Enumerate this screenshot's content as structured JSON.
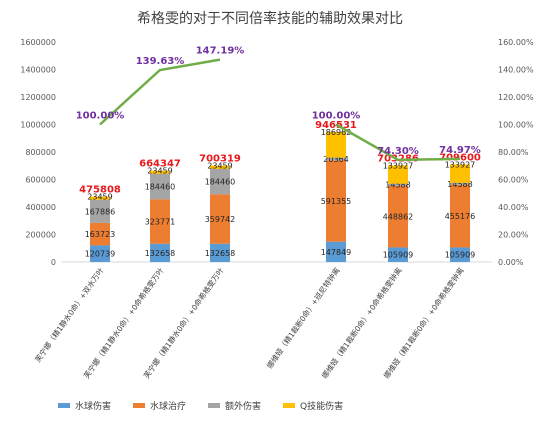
{
  "chart_data": {
    "type": "bar",
    "title": "希格雯的对于不同倍率技能的辅助效果对比",
    "categories": [
      "芙宁娜（精1静水0命）+双水万叶",
      "芙宁娜（精1静水0命）+0命希格雯万叶",
      "芙宁娜（精1静水0命）+0命希格雯万叶",
      "娜维娅（精1裁断0命）+班尼特钟离",
      "娜维娅（精1裁断0命）+0命希格雯钟离",
      "娜维娅（精1裁断0命）+0命希格雯钟离"
    ],
    "series": [
      {
        "name": "水球伤害",
        "color": "#5b9bd5",
        "values": [
          120739,
          132658,
          132658,
          147849,
          105909,
          105909
        ]
      },
      {
        "name": "水球治疗",
        "color": "#ed7d31",
        "values": [
          163723,
          323771,
          359742,
          591355,
          448862,
          455176
        ]
      },
      {
        "name": "额外伤害",
        "color": "#a5a5a5",
        "values": [
          167886,
          184460,
          184460,
          20364,
          14588,
          14588
        ]
      },
      {
        "name": "Q技能伤害",
        "color": "#ffc000",
        "values": [
          23459,
          23459,
          23459,
          186962,
          133927,
          133927
        ]
      }
    ],
    "totals": [
      475808,
      664347,
      700319,
      946531,
      703286,
      709600
    ],
    "total_labels": [
      "475808",
      "664347",
      "700319",
      "946531",
      "703286",
      "709600"
    ],
    "percent_line": {
      "values": [
        1.0,
        1.3963,
        1.4719,
        1.0,
        0.743,
        0.7497
      ],
      "labels": [
        "100.00%",
        "139.63%",
        "147.19%",
        "100.00%",
        "74.30%",
        "74.97%"
      ],
      "color": "#70ad47",
      "label_color": "#7030a0"
    },
    "total_color": "#e8191c",
    "ylim": [
      0,
      1600000
    ],
    "y_ticks": [
      "0",
      "200000",
      "400000",
      "600000",
      "800000",
      "1000000",
      "1200000",
      "1400000",
      "1600000"
    ],
    "y2lim": [
      0,
      1.6
    ],
    "y2_ticks": [
      "0.00%",
      "20.00%",
      "40.00%",
      "60.00%",
      "80.00%",
      "100.00%",
      "120.00%",
      "140.00%",
      "160.00%"
    ],
    "grid": false,
    "legend_position": "bottom"
  }
}
